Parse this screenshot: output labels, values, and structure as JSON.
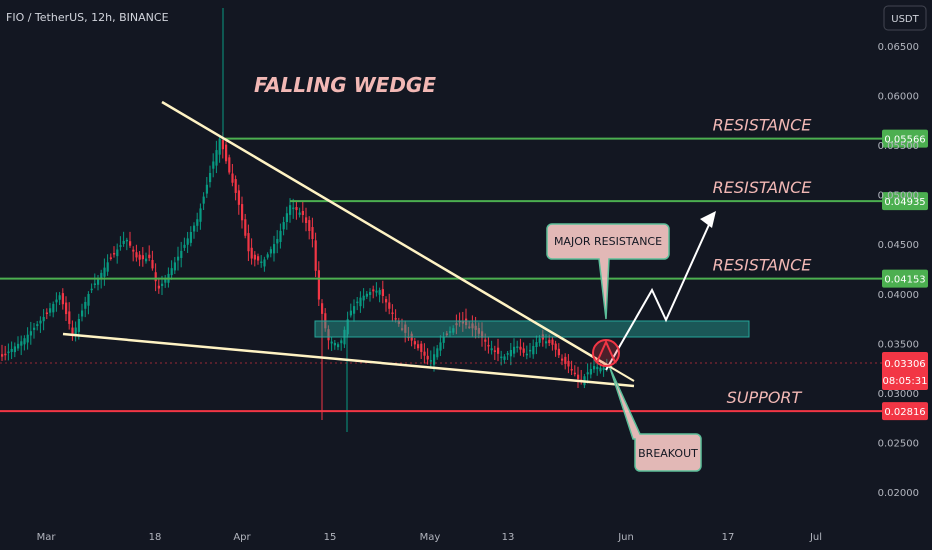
{
  "header": {
    "title": "FIO / TetherUS, 12h, BINANCE",
    "currency_button": "USDT"
  },
  "chart_data": {
    "type": "candlestick",
    "title": "FALLING WEDGE",
    "y_ticks": [
      "0.06500",
      "0.06000",
      "0.05500",
      "0.05000",
      "0.04500",
      "0.04000",
      "0.03500",
      "0.03000",
      "0.02500",
      "0.02000"
    ],
    "x_ticks": [
      "Mar",
      "18",
      "Apr",
      "15",
      "May",
      "13",
      "Jun",
      "17",
      "Jul"
    ],
    "levels": [
      {
        "name": "RESISTANCE",
        "value": 0.05566,
        "label": "0.05566",
        "color": "#4caf50"
      },
      {
        "name": "RESISTANCE",
        "value": 0.04935,
        "label": "0.04935",
        "color": "#4caf50"
      },
      {
        "name": "RESISTANCE",
        "value": 0.04153,
        "label": "0.04153",
        "color": "#4caf50"
      },
      {
        "name": "SUPPORT",
        "value": 0.02816,
        "label": "0.02816",
        "color": "#f23645"
      }
    ],
    "last_price": {
      "label": "0.03306",
      "countdown": "08:05:31",
      "color": "#f23645"
    },
    "zone_label": "MAJOR RESISTANCE",
    "breakout_label": "BREAKOUT",
    "grid": false,
    "colors": {
      "up": "#089981",
      "down": "#f23645",
      "wedge": "#fff3c4",
      "zone": "#26a69a",
      "background": "#131722"
    }
  }
}
